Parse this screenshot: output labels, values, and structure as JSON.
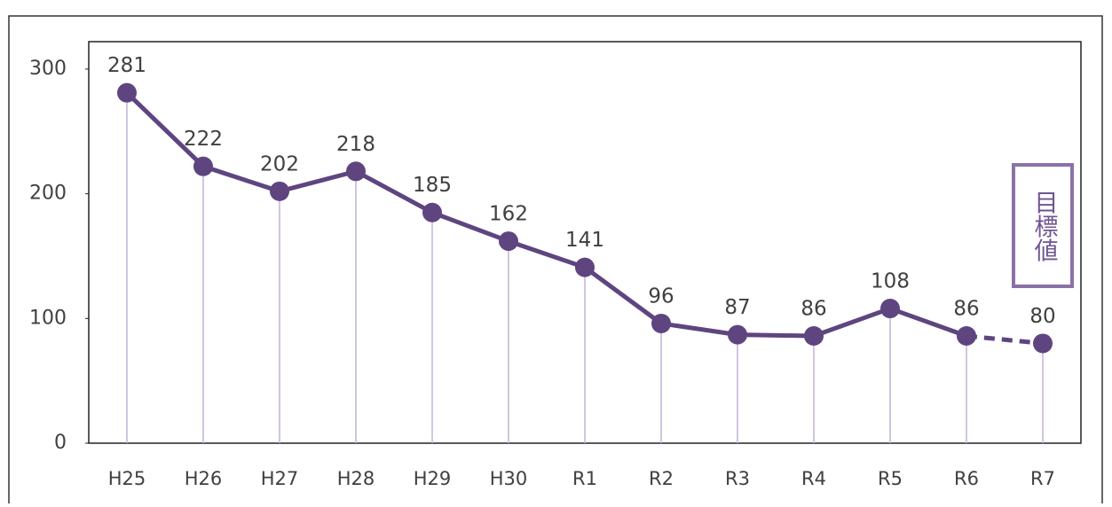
{
  "chart_data": {
    "type": "line",
    "categories": [
      "H25",
      "H26",
      "H27",
      "H28",
      "H29",
      "H30",
      "R1",
      "R2",
      "R3",
      "R4",
      "R5",
      "R6",
      "R7"
    ],
    "values": [
      281,
      222,
      202,
      218,
      185,
      162,
      141,
      96,
      87,
      86,
      108,
      86,
      80
    ],
    "color": "#5e4580",
    "ylim": [
      0,
      322
    ],
    "yticks": [
      0,
      100,
      200,
      300
    ],
    "annotation": "目標値"
  }
}
